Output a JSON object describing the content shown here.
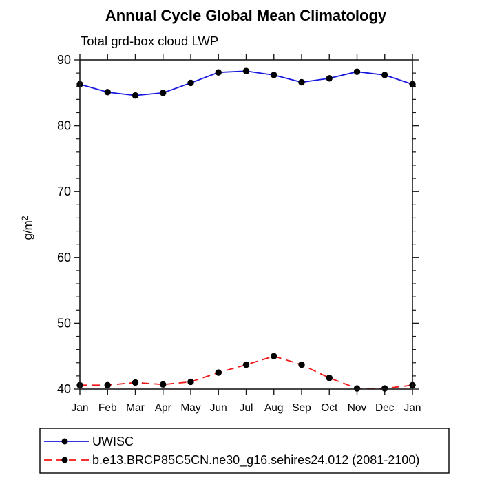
{
  "page": {
    "title": "Annual Cycle Global Mean Climatology",
    "subtitle": "Total grd-box cloud LWP"
  },
  "chart_data": {
    "type": "line",
    "title": "Annual Cycle Global Mean Climatology",
    "subtitle": "Total grd-box cloud LWP",
    "xlabel": "",
    "ylabel": "g/m^2",
    "ylabel_main": "g/m",
    "ylabel_sup": "2",
    "categories": [
      "Jan",
      "Feb",
      "Mar",
      "Apr",
      "May",
      "Jun",
      "Jul",
      "Aug",
      "Sep",
      "Oct",
      "Nov",
      "Dec",
      "Jan"
    ],
    "ylim": [
      40,
      90
    ],
    "ytick_major": [
      40,
      50,
      60,
      70,
      80,
      90
    ],
    "ytick_minor_step": 2,
    "grid": false,
    "legend_position": "bottom",
    "marker_color": "#000000",
    "axis_color": "#1a1a1a",
    "series": [
      {
        "name": "UWISC",
        "color": "#1717e0",
        "line_style": "solid",
        "marker": "circle",
        "values": [
          86.3,
          85.1,
          84.6,
          85.0,
          86.5,
          88.1,
          88.3,
          87.7,
          86.6,
          87.2,
          88.2,
          87.7,
          86.3
        ]
      },
      {
        "name": "b.e13.BRCP85C5CN.ne30_g16.sehires24.012 (2081-2100)",
        "color": "#f01414",
        "line_style": "dashed",
        "marker": "circle",
        "values": [
          40.6,
          40.6,
          41.0,
          40.7,
          41.1,
          42.5,
          43.7,
          45.0,
          43.7,
          41.7,
          40.1,
          40.1,
          40.6
        ]
      }
    ]
  }
}
